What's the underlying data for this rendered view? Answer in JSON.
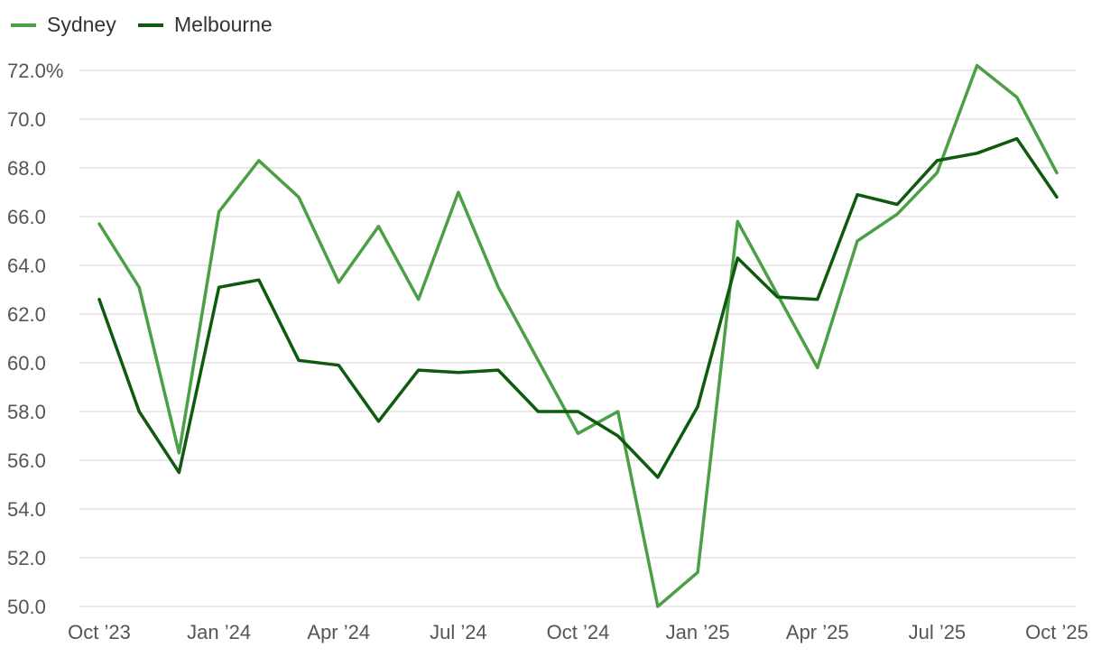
{
  "chart_data": {
    "type": "line",
    "title": "",
    "xlabel": "",
    "ylabel": "",
    "ylim": [
      50,
      72
    ],
    "yticks": [
      {
        "value": 72,
        "label": "72.0%"
      },
      {
        "value": 70,
        "label": "70.0"
      },
      {
        "value": 68,
        "label": "68.0"
      },
      {
        "value": 66,
        "label": "66.0"
      },
      {
        "value": 64,
        "label": "64.0"
      },
      {
        "value": 62,
        "label": "62.0"
      },
      {
        "value": 60,
        "label": "60.0"
      },
      {
        "value": 58,
        "label": "58.0"
      },
      {
        "value": 56,
        "label": "56.0"
      },
      {
        "value": 54,
        "label": "54.0"
      },
      {
        "value": 52,
        "label": "52.0"
      },
      {
        "value": 50,
        "label": "50.0"
      }
    ],
    "x": [
      "Oct '23",
      "Nov '23",
      "Dec '23",
      "Jan '24",
      "Feb '24",
      "Mar '24",
      "Apr '24",
      "May '24",
      "Jun '24",
      "Jul '24",
      "Aug '24",
      "Sep '24",
      "Oct '24",
      "Nov '24",
      "Dec '24",
      "Jan '25",
      "Feb '25",
      "Mar '25",
      "Apr '25",
      "May '25",
      "Jun '25",
      "Jul '25",
      "Aug '25",
      "Sep '25",
      "Oct '25"
    ],
    "xticks": [
      {
        "index": 0,
        "label": "Oct ’23"
      },
      {
        "index": 3,
        "label": "Jan ’24"
      },
      {
        "index": 6,
        "label": "Apr ’24"
      },
      {
        "index": 9,
        "label": "Jul ’24"
      },
      {
        "index": 12,
        "label": "Oct ’24"
      },
      {
        "index": 15,
        "label": "Jan ’25"
      },
      {
        "index": 18,
        "label": "Apr ’25"
      },
      {
        "index": 21,
        "label": "Jul ’25"
      },
      {
        "index": 24,
        "label": "Oct ’25"
      }
    ],
    "series": [
      {
        "name": "Sydney",
        "color": "#4ba046",
        "values": [
          65.7,
          63.1,
          56.3,
          66.2,
          68.3,
          66.8,
          63.3,
          65.6,
          62.6,
          67.0,
          63.1,
          60.1,
          57.1,
          58.0,
          50.0,
          51.4,
          65.8,
          62.8,
          59.8,
          65.0,
          66.1,
          67.8,
          72.2,
          70.9,
          67.8
        ]
      },
      {
        "name": "Melbourne",
        "color": "#0e5a0e",
        "values": [
          62.6,
          58.0,
          55.5,
          63.1,
          63.4,
          60.1,
          59.9,
          57.6,
          59.7,
          59.6,
          59.7,
          58.0,
          58.0,
          57.0,
          55.3,
          58.2,
          64.3,
          62.7,
          62.6,
          66.9,
          66.5,
          68.3,
          68.6,
          69.2,
          66.8
        ]
      }
    ],
    "legend": "top-left",
    "grid": true
  }
}
